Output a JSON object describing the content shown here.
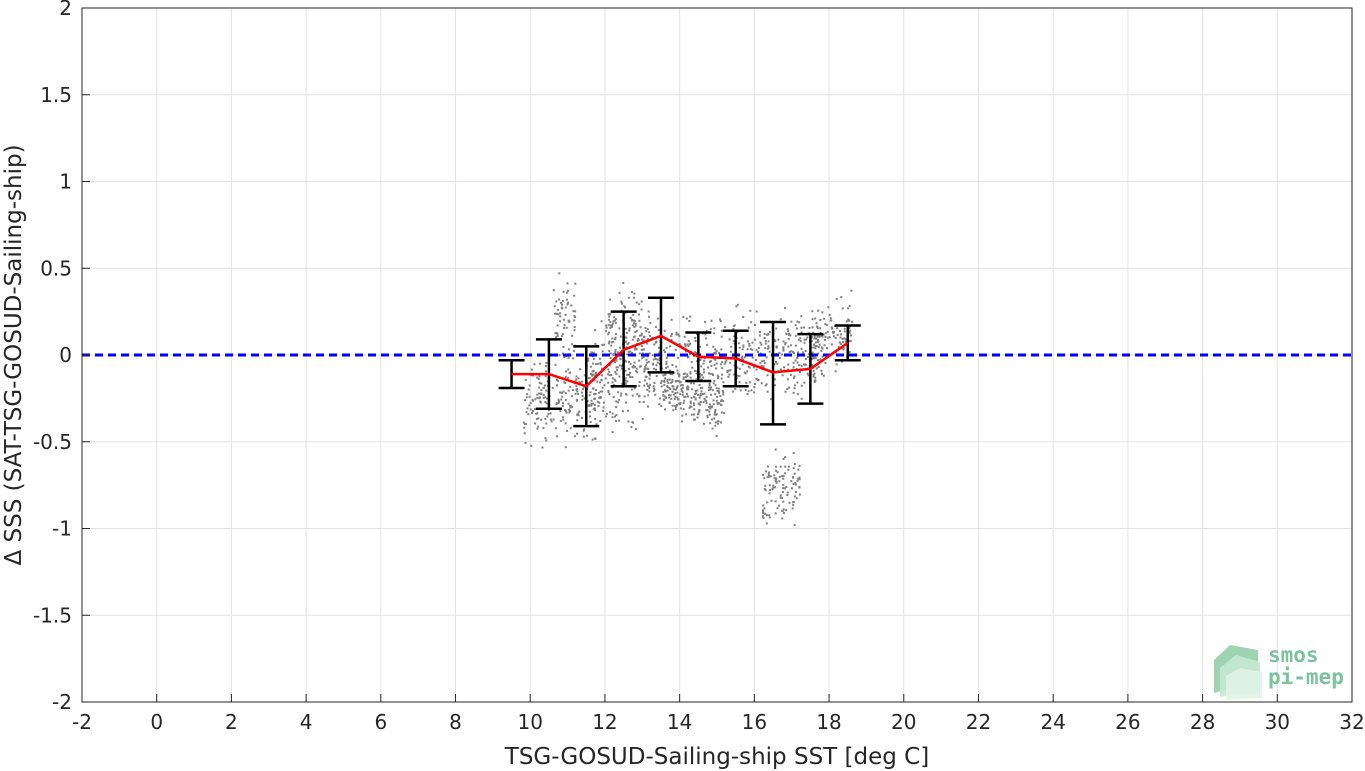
{
  "chart_data": {
    "type": "scatter",
    "title": "",
    "xlabel": "TSG-GOSUD-Sailing-ship SST [deg C]",
    "ylabel": "Δ SSS (SAT-TSG-GOSUD-Sailing-ship)",
    "xlim": [
      -2,
      32
    ],
    "ylim": [
      -2,
      2
    ],
    "xticks": [
      -2,
      0,
      2,
      4,
      6,
      8,
      10,
      12,
      14,
      16,
      18,
      20,
      22,
      24,
      26,
      28,
      30,
      32
    ],
    "yticks": [
      2,
      1.5,
      1,
      0.5,
      0,
      -0.5,
      -1,
      -1.5,
      -2
    ],
    "xtick_labels": [
      "-2",
      "0",
      "2",
      "4",
      "6",
      "8",
      "10",
      "12",
      "14",
      "16",
      "18",
      "20",
      "22",
      "24",
      "26",
      "28",
      "30",
      "32"
    ],
    "ytick_labels": [
      "2",
      "1.5",
      "1",
      "0.5",
      "0",
      "-0.5",
      "-1",
      "-1.5",
      "-2"
    ],
    "grid": true,
    "reference_line": {
      "y": 0,
      "color": "#0000ff",
      "style": "dashed"
    },
    "scatter_color": "#808080",
    "scatter_clusters": [
      {
        "x_range": [
          9.8,
          11.9
        ],
        "y_center": -0.25,
        "y_spread": 0.22,
        "trend": 0.05
      },
      {
        "x_range": [
          10.6,
          11.2
        ],
        "y_center": 0.2,
        "y_spread": 0.25,
        "trend": 0.05
      },
      {
        "x_range": [
          11.4,
          13.2
        ],
        "y_center": -0.1,
        "y_spread": 0.3,
        "trend": 0.15
      },
      {
        "x_range": [
          12.0,
          13.0
        ],
        "y_center": 0.1,
        "y_spread": 0.25,
        "trend": 0.05
      },
      {
        "x_range": [
          13.0,
          17.8
        ],
        "y_center": -0.02,
        "y_spread": 0.24,
        "trend": 0.08
      },
      {
        "x_range": [
          13.5,
          15.2
        ],
        "y_center": -0.25,
        "y_spread": 0.15,
        "trend": -0.1
      },
      {
        "x_range": [
          16.2,
          17.2
        ],
        "y_center": -0.75,
        "y_spread": 0.2,
        "trend": 0.1
      },
      {
        "x_range": [
          17.5,
          18.6
        ],
        "y_center": 0.1,
        "y_spread": 0.18,
        "trend": 0.12
      }
    ],
    "series": [
      {
        "type": "line",
        "color": "#ff0000",
        "x": [
          9.5,
          10.5,
          11.5,
          12.5,
          13.5,
          14.5,
          15.5,
          16.5,
          17.5,
          18.5
        ],
        "y": [
          -0.11,
          -0.11,
          -0.18,
          0.03,
          0.11,
          -0.01,
          -0.02,
          -0.1,
          -0.08,
          0.07
        ]
      },
      {
        "type": "errorbar",
        "color": "#000000",
        "x": [
          9.5,
          10.5,
          11.5,
          12.5,
          13.5,
          14.5,
          15.5,
          16.5,
          17.5,
          18.5
        ],
        "low": [
          -0.19,
          -0.31,
          -0.41,
          -0.18,
          -0.1,
          -0.15,
          -0.18,
          -0.4,
          -0.28,
          -0.03
        ],
        "high": [
          -0.03,
          0.09,
          0.05,
          0.25,
          0.33,
          0.13,
          0.14,
          0.19,
          0.12,
          0.17
        ]
      }
    ]
  },
  "logo": {
    "line1": "smos",
    "line2": "pi-mep",
    "color": "#7cc29a"
  }
}
